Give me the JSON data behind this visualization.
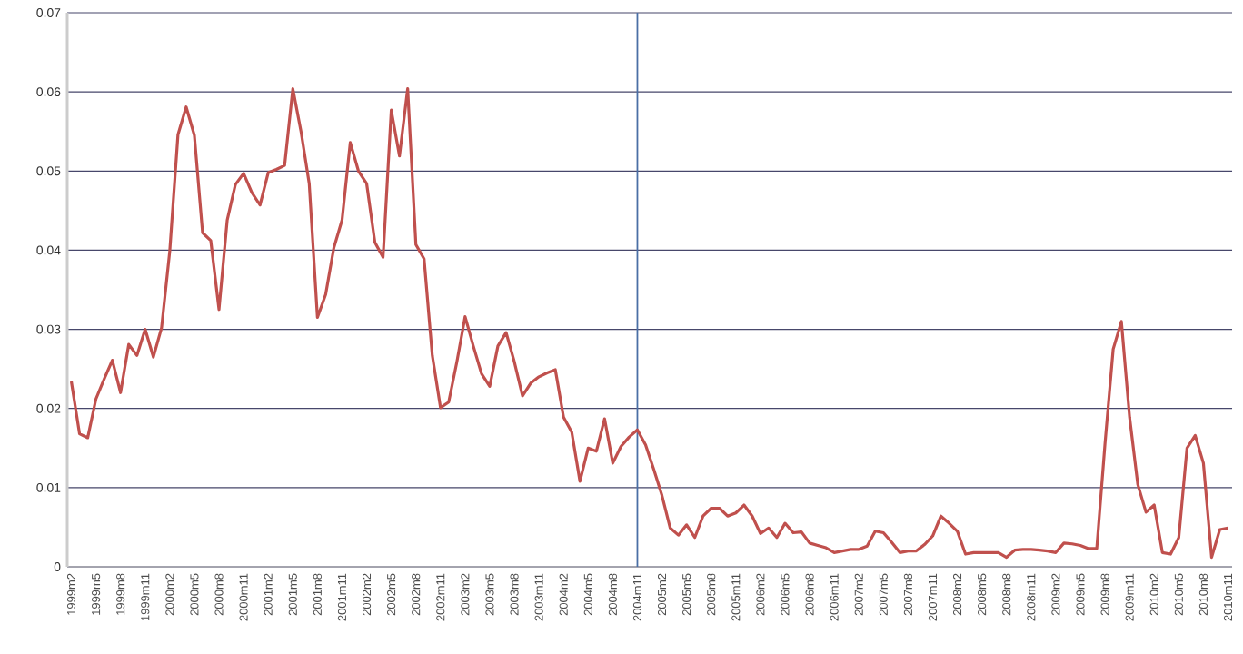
{
  "chart_data": {
    "type": "line",
    "categories": [
      "1999m2",
      null,
      null,
      "1999m5",
      null,
      null,
      "1999m8",
      null,
      null,
      "1999m11",
      null,
      null,
      "2000m2",
      null,
      null,
      "2000m5",
      null,
      null,
      "2000m8",
      null,
      null,
      "2000m11",
      null,
      null,
      "2001m2",
      null,
      null,
      "2001m5",
      null,
      null,
      "2001m8",
      null,
      null,
      "2001m11",
      null,
      null,
      "2002m2",
      null,
      null,
      "2002m5",
      null,
      null,
      "2002m8",
      null,
      null,
      "2002m11",
      null,
      null,
      "2003m2",
      null,
      null,
      "2003m5",
      null,
      null,
      "2003m8",
      null,
      null,
      "2003m11",
      null,
      null,
      "2004m2",
      null,
      null,
      "2004m5",
      null,
      null,
      "2004m8",
      null,
      null,
      "2004m11",
      null,
      null,
      "2005m2",
      null,
      null,
      "2005m5",
      null,
      null,
      "2005m8",
      null,
      null,
      "2005m11",
      null,
      null,
      "2006m2",
      null,
      null,
      "2006m5",
      null,
      null,
      "2006m8",
      null,
      null,
      "2006m11",
      null,
      null,
      "2007m2",
      null,
      null,
      "2007m5",
      null,
      null,
      "2007m8",
      null,
      null,
      "2007m11",
      null,
      null,
      "2008m2",
      null,
      null,
      "2008m5",
      null,
      null,
      "2008m8",
      null,
      null,
      "2008m11",
      null,
      null,
      "2009m2",
      null,
      null,
      "2009m5",
      null,
      null,
      "2009m8",
      null,
      null,
      "2009m11",
      null,
      null,
      "2010m2",
      null,
      null,
      "2010m5",
      null,
      null,
      "2010m8",
      null,
      null,
      "2010m11"
    ],
    "series": [
      {
        "color": "#c0504d",
        "values": [
          0.0234,
          0.0168,
          0.0163,
          0.0212,
          0.0237,
          0.0261,
          0.022,
          0.0281,
          0.0267,
          0.03,
          0.0265,
          0.0302,
          0.0399,
          0.0546,
          0.0581,
          0.0545,
          0.0422,
          0.0412,
          0.0325,
          0.0438,
          0.0483,
          0.0497,
          0.0473,
          0.0457,
          0.0498,
          0.0502,
          0.0507,
          0.0604,
          0.055,
          0.0484,
          0.0315,
          0.0344,
          0.0403,
          0.0438,
          0.0536,
          0.05,
          0.0484,
          0.041,
          0.0391,
          0.0577,
          0.0519,
          0.0604,
          0.0407,
          0.0389,
          0.0267,
          0.0201,
          0.0208,
          0.0259,
          0.0316,
          0.0279,
          0.0244,
          0.0228,
          0.0279,
          0.0296,
          0.0259,
          0.0216,
          0.0232,
          0.024,
          0.0245,
          0.0249,
          0.0189,
          0.017,
          0.0108,
          0.015,
          0.0146,
          0.0187,
          0.0131,
          0.0152,
          0.0164,
          0.0173,
          0.0154,
          0.0123,
          0.009,
          0.0049,
          0.004,
          0.0053,
          0.0037,
          0.0064,
          0.0074,
          0.0074,
          0.0064,
          0.0068,
          0.0078,
          0.0064,
          0.0042,
          0.0049,
          0.0037,
          0.0055,
          0.0043,
          0.0044,
          0.003,
          0.0027,
          0.0024,
          0.0018,
          0.002,
          0.0022,
          0.0022,
          0.0026,
          0.0045,
          0.0043,
          0.0031,
          0.0018,
          0.002,
          0.002,
          0.0028,
          0.0039,
          0.0064,
          0.0055,
          0.0045,
          0.0016,
          0.0018,
          0.0018,
          0.0018,
          0.0018,
          0.0012,
          0.0021,
          0.0022,
          0.0022,
          0.0021,
          0.002,
          0.0018,
          0.003,
          0.0029,
          0.0027,
          0.0023,
          0.0023,
          0.0155,
          0.0275,
          0.031,
          0.0189,
          0.0104,
          0.0069,
          0.0078,
          0.0018,
          0.0016,
          0.0037,
          0.015,
          0.0166,
          0.0131,
          0.0012,
          0.0047,
          0.0049
        ]
      }
    ],
    "ylim": [
      0,
      0.07
    ],
    "yticks": [
      0,
      0.01,
      0.02,
      0.03,
      0.04,
      0.05,
      0.06,
      0.07
    ],
    "grid": "y",
    "marker": "none",
    "line_style": "solid",
    "ref_lines": [
      {
        "axis": "x",
        "value": "2004m11",
        "color": "#4a6fa5"
      }
    ]
  }
}
